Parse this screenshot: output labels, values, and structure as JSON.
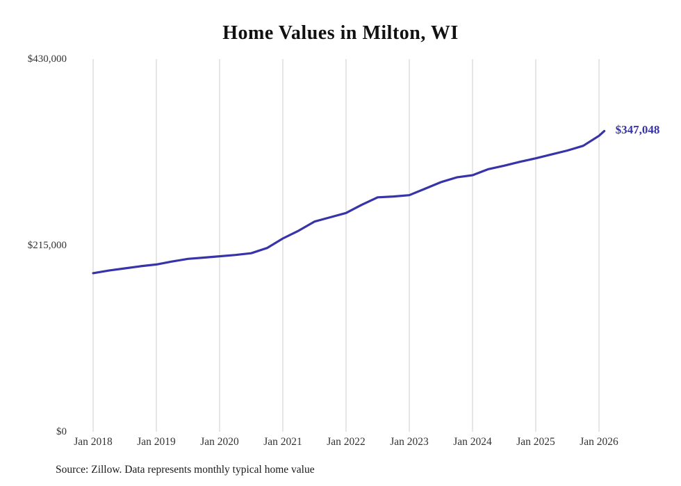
{
  "page": {
    "title": "Home Values in Milton, WI",
    "source": "Source: Zillow. Data represents monthly typical home value",
    "end_label": "$347,048"
  },
  "chart_data": {
    "type": "line",
    "title": "Home Values in Milton, WI",
    "series_name": "Typical home value",
    "x": [
      "2018-01",
      "2018-04",
      "2018-07",
      "2018-10",
      "2019-01",
      "2019-04",
      "2019-07",
      "2019-10",
      "2020-01",
      "2020-04",
      "2020-07",
      "2020-10",
      "2021-01",
      "2021-04",
      "2021-07",
      "2021-10",
      "2022-01",
      "2022-04",
      "2022-07",
      "2022-10",
      "2023-01",
      "2023-04",
      "2023-07",
      "2023-10",
      "2024-01",
      "2024-04",
      "2024-07",
      "2024-10",
      "2025-01",
      "2025-04",
      "2025-07",
      "2025-10",
      "2026-01",
      "2026-02"
    ],
    "values": [
      183000,
      186000,
      188500,
      191000,
      193000,
      196500,
      199500,
      201000,
      202500,
      204000,
      206000,
      212000,
      223000,
      232000,
      242500,
      247500,
      252500,
      262000,
      270500,
      271500,
      273000,
      280500,
      288000,
      293500,
      296000,
      303000,
      307000,
      311500,
      315500,
      320000,
      324500,
      330000,
      341500,
      347048
    ],
    "ylim": [
      0,
      430000
    ],
    "yticks": [
      {
        "value": 0,
        "label": "$0"
      },
      {
        "value": 215000,
        "label": "$215,000"
      },
      {
        "value": 430000,
        "label": "$430,000"
      }
    ],
    "xticks": [
      {
        "date": "2018-01",
        "label": "Jan 2018"
      },
      {
        "date": "2019-01",
        "label": "Jan 2019"
      },
      {
        "date": "2020-01",
        "label": "Jan 2020"
      },
      {
        "date": "2021-01",
        "label": "Jan 2021"
      },
      {
        "date": "2022-01",
        "label": "Jan 2022"
      },
      {
        "date": "2023-01",
        "label": "Jan 2023"
      },
      {
        "date": "2024-01",
        "label": "Jan 2024"
      },
      {
        "date": "2025-01",
        "label": "Jan 2025"
      },
      {
        "date": "2026-01",
        "label": "Jan 2026"
      }
    ],
    "annotation": {
      "text": "$347,048",
      "date": "2026-02",
      "value": 347048
    },
    "line_color": "#3733a8",
    "grid_color": "#cccccc",
    "grid": "vertical",
    "legend": "none"
  }
}
